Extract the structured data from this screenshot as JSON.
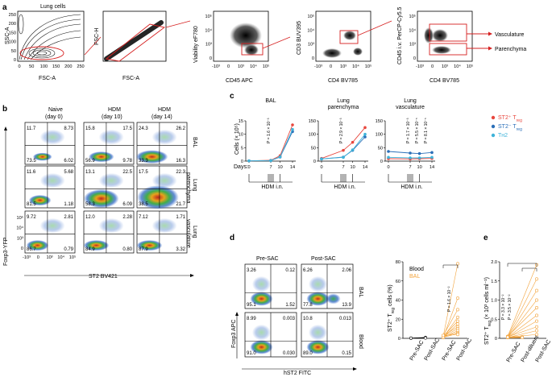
{
  "panel_labels": [
    "a",
    "b",
    "c",
    "d",
    "e"
  ],
  "panel_a": {
    "plot1": {
      "title": "Lung cells",
      "ylabel": "SSC-A",
      "xlabel": "FSC-A",
      "xticks": [
        "0",
        "50",
        "100",
        "150",
        "200",
        "250"
      ],
      "yticks": [
        "0",
        "50",
        "100",
        "150",
        "200",
        "250"
      ]
    },
    "plot2": {
      "ylabel": "FSC-H",
      "xlabel": "FSC-A"
    },
    "plot3": {
      "ylabel": "Viability eF780",
      "xlabel": "CD45 APC",
      "xticks": [
        "-10³",
        "0",
        "10³",
        "10⁴",
        "10⁵"
      ],
      "yticks": [
        "0",
        "10³",
        "10⁴",
        "10⁵"
      ]
    },
    "plot4": {
      "ylabel": "CD3 BUV395",
      "xlabel": "CD4 BV785",
      "xticks": [
        "-10³",
        "0",
        "10³",
        "10⁴",
        "10⁵"
      ],
      "yticks": [
        "0",
        "10³",
        "10⁴",
        "10⁵"
      ]
    },
    "plot5": {
      "ylabel": "CD45 i.v. PerCP-Cy5.5",
      "xlabel": "CD4 BV785",
      "xticks": [
        "-10³",
        "0",
        "10³",
        "10⁴",
        "10⁵"
      ],
      "yticks": [
        "0",
        "10³",
        "10⁴",
        "10⁵"
      ]
    },
    "gate_labels": [
      "Vasculature",
      "Parenchyma"
    ]
  },
  "panel_b": {
    "columns": [
      "Naive",
      "(day 0)",
      "HDM",
      "(day 10)",
      "HDM",
      "(day 14)"
    ],
    "rows": [
      "BAL",
      "Lung parenchyma",
      "Lung vasculature"
    ],
    "ylabel": "Foxp3-YFP",
    "xlabel": "ST2 BV421",
    "yticks": [
      "10⁵",
      "10⁴",
      "10³",
      "0"
    ],
    "xticks": [
      "-10³",
      "0",
      "10³",
      "10⁴",
      "10⁵"
    ],
    "quadrants": [
      [
        [
          "11.7",
          "8.73",
          "73.5",
          "6.02"
        ],
        [
          "15.8",
          "17.5",
          "56.9",
          "9.78"
        ],
        [
          "24.3",
          "26.2",
          "33.3",
          "16.3"
        ]
      ],
      [
        [
          "11.6",
          "5.68",
          "81.5",
          "1.18"
        ],
        [
          "13.1",
          "22.5",
          "58.3",
          "6.09"
        ],
        [
          "17.5",
          "22.3",
          "38.5",
          "21.7"
        ]
      ],
      [
        [
          "9.72",
          "2.81",
          "86.7",
          "0.79"
        ],
        [
          "12.0",
          "2.28",
          "84.9",
          "0.80"
        ],
        [
          "7.12",
          "1.71",
          "87.9",
          "3.32"
        ]
      ]
    ]
  },
  "panel_c": {
    "ylabel": "Cells (× 10⁵)",
    "days_label": "Days:",
    "treatment": "HDM i.n.",
    "legend": [
      "ST2⁺ T",
      "ST2⁻ T",
      "Tʜ2"
    ],
    "legend_sub": "reg",
    "colors": {
      "st2pos": "#e8473e",
      "st2neg": "#2a6fb8",
      "th2": "#3fb3d9"
    },
    "chart_data": [
      {
        "type": "line",
        "title": "BAL",
        "x": [
          0,
          7,
          10,
          14
        ],
        "ylim": [
          0,
          15
        ],
        "yticks": [
          "0",
          "5",
          "10",
          "15"
        ],
        "series": [
          {
            "name": "ST2+ Treg",
            "values": [
              0.1,
              0.3,
              2.0,
              13.5
            ]
          },
          {
            "name": "ST2- Treg",
            "values": [
              0.1,
              0.2,
              1.5,
              11.0
            ]
          },
          {
            "name": "Th2",
            "values": [
              0.1,
              0.2,
              1.6,
              11.8
            ]
          }
        ],
        "annotations": [
          "P = 1.6 × 10⁻³"
        ]
      },
      {
        "type": "line",
        "title": "Lung parenchyma",
        "x": [
          0,
          7,
          10,
          14
        ],
        "ylim": [
          0,
          150
        ],
        "yticks": [
          "0",
          "50",
          "100",
          "150"
        ],
        "series": [
          {
            "name": "ST2+ Treg",
            "values": [
              10,
              40,
              70,
              125
            ]
          },
          {
            "name": "ST2- Treg",
            "values": [
              8,
              15,
              40,
              90
            ]
          },
          {
            "name": "Th2",
            "values": [
              8,
              14,
              42,
              100
            ]
          }
        ],
        "annotations": [
          "P = 2.9 × 10⁻³"
        ]
      },
      {
        "type": "line",
        "title": "Lung vasculature",
        "x": [
          0,
          7,
          10,
          14
        ],
        "ylim": [
          0,
          150
        ],
        "yticks": [
          "0",
          "50",
          "100",
          "150"
        ],
        "series": [
          {
            "name": "ST2+ Treg",
            "values": [
              9,
              8,
              9,
              10
            ]
          },
          {
            "name": "ST2- Treg",
            "values": [
              36,
              30,
              28,
              32
            ]
          },
          {
            "name": "Th2",
            "values": [
              14,
              12,
              12,
              14
            ]
          }
        ],
        "annotations": [
          "P = 1.7 × 10⁻³",
          "P = 5.5 × 10⁻⁵",
          "P = 8.1 × 10⁻⁵"
        ]
      }
    ],
    "xtick_labels": [
      "0",
      "7",
      "10",
      "14"
    ]
  },
  "panel_d": {
    "columns": [
      "Pre-SAC",
      "Post-SAC"
    ],
    "rows": [
      "BAL",
      "Blood"
    ],
    "ylabel": "Foxp3 APC",
    "xlabel": "hST2 FITC",
    "quadrants": [
      [
        [
          "3.26",
          "0.12",
          "95.1",
          "1.52"
        ],
        [
          "6.26",
          "2.06",
          "77.8",
          "13.9"
        ]
      ],
      [
        [
          "8.99",
          "0.003",
          "91.0",
          "0.030"
        ],
        [
          "10.8",
          "0.013",
          "89.0",
          "0.15"
        ]
      ]
    ],
    "chart_data": {
      "type": "scatter",
      "ylabel": "ST2⁺ T",
      "ylabel_sub": "reg",
      "ylabel_end": " cells (%)",
      "ylim": [
        0,
        80
      ],
      "yticks": [
        "0",
        "20",
        "40",
        "60",
        "80"
      ],
      "categories": [
        "Pre-SAC",
        "Post-SAC",
        "Pre-SAC",
        "Post-SAC"
      ],
      "legend": [
        "Blood",
        "BAL"
      ],
      "blood_pairs": [
        [
          0.2,
          0.5
        ],
        [
          0.1,
          0.8
        ],
        [
          0.3,
          1.0
        ],
        [
          0.2,
          0.4
        ],
        [
          0.1,
          0.6
        ],
        [
          0.2,
          0.3
        ]
      ],
      "bal_pairs": [
        [
          2,
          78
        ],
        [
          1,
          42
        ],
        [
          3,
          30
        ],
        [
          1,
          22
        ],
        [
          2,
          18
        ],
        [
          1,
          15
        ],
        [
          3,
          12
        ],
        [
          2,
          10
        ],
        [
          1,
          8
        ],
        [
          2,
          6
        ],
        [
          1,
          5
        ],
        [
          3,
          4
        ]
      ],
      "annotation": "P = 1.6 × 10⁻²"
    }
  },
  "panel_e": {
    "chart_data": {
      "type": "scatter",
      "ylabel": "ST2⁺ T",
      "ylabel_sub": "reg",
      "ylabel_end": " (× 10³ cells ml⁻¹)",
      "ylim": [
        0,
        2.0
      ],
      "yticks": [
        "0",
        "0.5",
        "1.0",
        "1.5",
        "2.0"
      ],
      "categories": [
        "Pre-SAC",
        "Post-diluent",
        "Post-SAC"
      ],
      "pairs_a": [
        [
          0.02,
          0.03
        ],
        [
          0.01,
          0.02
        ],
        [
          0.03,
          0.04
        ],
        [
          0.02,
          0.02
        ]
      ],
      "pairs_b": [
        [
          0.05,
          1.92
        ],
        [
          0.04,
          1.55
        ],
        [
          0.03,
          1.25
        ],
        [
          0.02,
          1.0
        ],
        [
          0.05,
          0.8
        ],
        [
          0.03,
          0.6
        ],
        [
          0.02,
          0.45
        ],
        [
          0.04,
          0.3
        ],
        [
          0.02,
          0.2
        ],
        [
          0.03,
          0.1
        ]
      ],
      "annotations": [
        "P = 3.3 × 10⁻²",
        "P = 3.5 × 10⁻²"
      ]
    }
  }
}
